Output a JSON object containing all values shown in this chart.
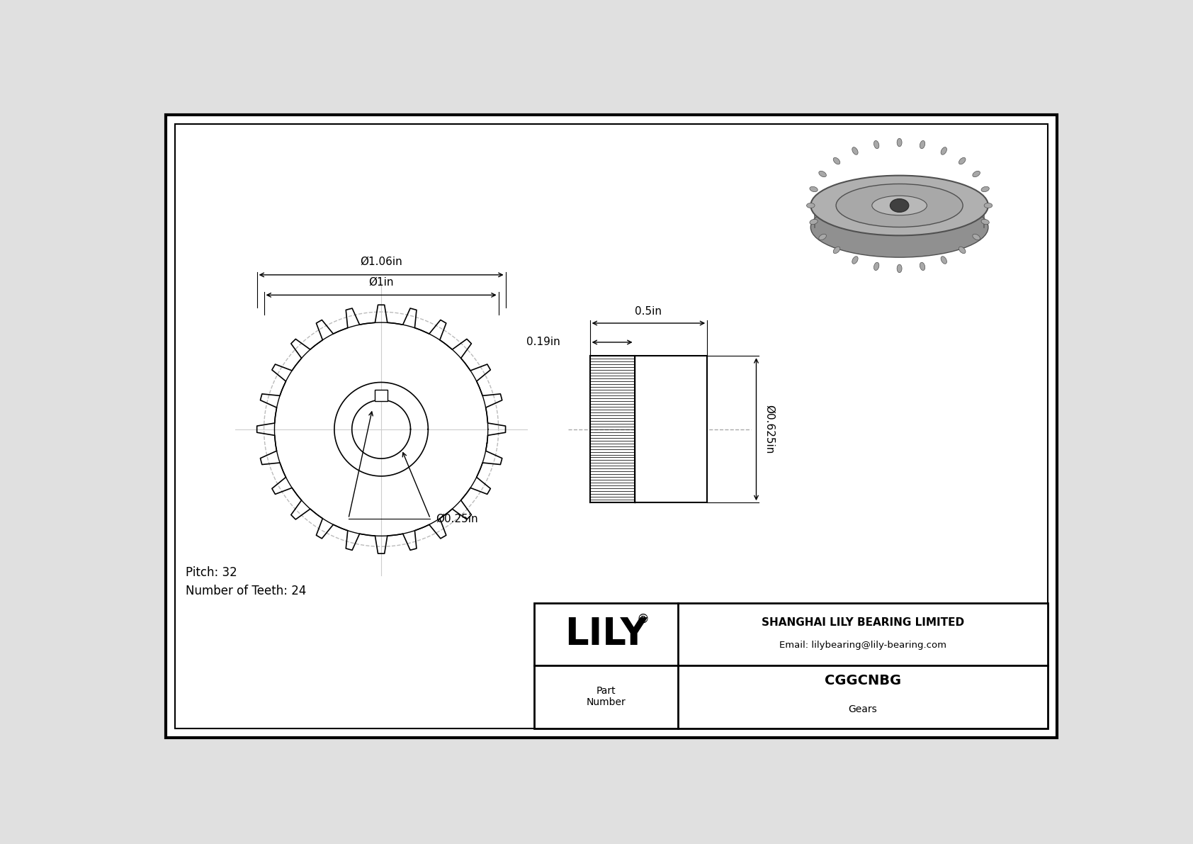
{
  "bg_color": "#e8e8e8",
  "line_color": "#000000",
  "dashed_color": "#aaaaaa",
  "part_number": "CGGCNBG",
  "part_type": "Gears",
  "company": "SHANGHAI LILY BEARING LIMITED",
  "email": "Email: lilybearing@lily-bearing.com",
  "pitch": "Pitch: 32",
  "num_teeth": "Number of Teeth: 24",
  "dim_outer": "Ø1.06in",
  "dim_pitch": "Ø1in",
  "dim_bore": "Ø0.25in",
  "dim_width": "0.5in",
  "dim_hub_d": "0.19in",
  "dim_face_d": "Ø0.625in",
  "n_teeth": 24,
  "outer_r": 0.53,
  "pitch_r": 0.5,
  "root_r": 0.455,
  "hub_r": 0.2,
  "bore_r": 0.125
}
